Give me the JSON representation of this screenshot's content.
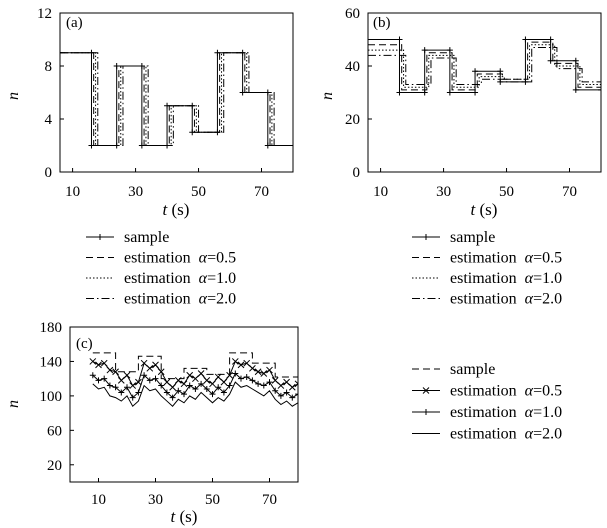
{
  "chart_data": [
    {
      "type": "line",
      "panel_label": "(a)",
      "xlabel_var": "t",
      "xlabel_unit": " (s)",
      "ylabel": "n",
      "xlim": [
        6,
        80
      ],
      "ylim": [
        0,
        12
      ],
      "xticks": [
        10,
        30,
        50,
        70
      ],
      "yticks": [
        0,
        4,
        8,
        12
      ],
      "grid": false,
      "legend_placement": "below",
      "legend": [
        {
          "style": "plus-solid",
          "label": "sample"
        },
        {
          "style": "dashed",
          "label": "estimation",
          "alpha": "=0.5"
        },
        {
          "style": "dotted",
          "label": "estimation",
          "alpha": "=1.0"
        },
        {
          "style": "dashdot",
          "label": "estimation",
          "alpha": "=2.0"
        }
      ],
      "series": [
        {
          "style": "plus-solid",
          "x": [
            6,
            16,
            16,
            24,
            24,
            32,
            32,
            40,
            40,
            48,
            48,
            56,
            56,
            64,
            64,
            72,
            72,
            80
          ],
          "y": [
            9,
            9,
            2,
            2,
            8,
            8,
            2,
            2,
            5,
            5,
            3,
            3,
            9,
            9,
            6,
            6,
            2,
            2
          ]
        },
        {
          "style": "dashed",
          "x": [
            6,
            16.7,
            16.7,
            24.7,
            24.7,
            32.7,
            32.7,
            40.7,
            40.7,
            48.7,
            48.7,
            56.7,
            56.7,
            64.7,
            64.7,
            72.7,
            72.7,
            80
          ],
          "y": [
            9,
            9,
            2,
            2,
            8,
            8,
            2,
            2,
            5,
            5,
            3,
            3,
            9,
            9,
            6,
            6,
            2,
            2
          ]
        },
        {
          "style": "dotted",
          "x": [
            6,
            17.3,
            17.3,
            25.3,
            25.3,
            33.3,
            33.3,
            41.3,
            41.3,
            49.3,
            49.3,
            57.3,
            57.3,
            65.3,
            65.3,
            73.3,
            73.3,
            80
          ],
          "y": [
            9,
            9,
            2,
            2,
            8,
            8,
            2,
            2,
            5,
            5,
            3,
            3,
            9,
            9,
            6,
            6,
            2,
            2
          ]
        },
        {
          "style": "dashdot",
          "x": [
            6,
            18,
            18,
            26,
            26,
            34,
            34,
            42,
            42,
            50,
            50,
            58,
            58,
            66,
            66,
            74,
            74,
            80
          ],
          "y": [
            9,
            9,
            2,
            2,
            8,
            8,
            2,
            2,
            5,
            5,
            3,
            3,
            9,
            9,
            6,
            6,
            2,
            2
          ]
        }
      ]
    },
    {
      "type": "line",
      "panel_label": "(b)",
      "xlabel_var": "t",
      "xlabel_unit": " (s)",
      "ylabel": "n",
      "xlim": [
        6,
        80
      ],
      "ylim": [
        0,
        60
      ],
      "xticks": [
        10,
        30,
        50,
        70
      ],
      "yticks": [
        0,
        20,
        40,
        60
      ],
      "grid": false,
      "legend_placement": "below",
      "legend": [
        {
          "style": "plus-solid",
          "label": "sample"
        },
        {
          "style": "dashed",
          "label": "estimation",
          "alpha": "=0.5"
        },
        {
          "style": "dotted",
          "label": "estimation",
          "alpha": "=1.0"
        },
        {
          "style": "dashdot",
          "label": "estimation",
          "alpha": "=2.0"
        }
      ],
      "series": [
        {
          "style": "plus-solid",
          "x": [
            6,
            16,
            16,
            24,
            24,
            32,
            32,
            40,
            40,
            48,
            48,
            56,
            56,
            64,
            64,
            72,
            72,
            80
          ],
          "y": [
            50,
            50,
            30,
            30,
            46,
            46,
            30,
            30,
            38,
            38,
            34,
            34,
            50,
            50,
            42,
            42,
            31,
            31
          ]
        },
        {
          "style": "dashed",
          "x": [
            6,
            16.7,
            16.7,
            24.7,
            24.7,
            32.7,
            32.7,
            40.7,
            40.7,
            48.7,
            48.7,
            56.7,
            56.7,
            64.7,
            64.7,
            72.7,
            72.7,
            80
          ],
          "y": [
            48,
            48,
            31,
            31,
            45,
            45,
            31,
            31,
            37,
            37,
            35,
            35,
            49,
            49,
            41,
            41,
            32,
            32
          ]
        },
        {
          "style": "dotted",
          "x": [
            6,
            17.3,
            17.3,
            25.3,
            25.3,
            33.3,
            33.3,
            41.3,
            41.3,
            49.3,
            49.3,
            57.3,
            57.3,
            65.3,
            65.3,
            73.3,
            73.3,
            80
          ],
          "y": [
            46,
            46,
            32,
            32,
            44,
            44,
            32,
            32,
            36,
            36,
            35,
            35,
            48,
            48,
            40,
            40,
            33,
            33
          ]
        },
        {
          "style": "dashdot",
          "x": [
            6,
            18,
            18,
            26,
            26,
            34,
            34,
            42,
            42,
            50,
            50,
            58,
            58,
            66,
            66,
            74,
            74,
            80
          ],
          "y": [
            44,
            44,
            33,
            33,
            43,
            43,
            33,
            33,
            35,
            35,
            34,
            34,
            47,
            47,
            39,
            39,
            34,
            34
          ]
        }
      ]
    },
    {
      "type": "line",
      "panel_label": "(c)",
      "xlabel_var": "t",
      "xlabel_unit": " (s)",
      "ylabel": "n",
      "xlim": [
        0,
        80
      ],
      "ylim": [
        0,
        180
      ],
      "xticks": [
        10,
        30,
        50,
        70
      ],
      "yticks": [
        20,
        60,
        100,
        140,
        180
      ],
      "grid": false,
      "legend_placement": "right",
      "legend": [
        {
          "style": "dashed",
          "label": "sample"
        },
        {
          "style": "x-solid",
          "label": "estimation",
          "alpha": "=0.5"
        },
        {
          "style": "plus-solid",
          "label": "estimation",
          "alpha": "=1.0"
        },
        {
          "style": "solid",
          "label": "estimation",
          "alpha": "=2.0"
        }
      ],
      "series": [
        {
          "style": "dashed",
          "x": [
            8,
            16,
            16,
            24,
            24,
            32,
            32,
            40,
            40,
            48,
            48,
            56,
            56,
            64,
            64,
            72,
            72,
            80
          ],
          "y": [
            150,
            150,
            128,
            128,
            146,
            146,
            120,
            120,
            132,
            132,
            125,
            125,
            150,
            150,
            138,
            138,
            122,
            122
          ]
        },
        {
          "style": "x-solid",
          "x": [
            8,
            10,
            12,
            14,
            16,
            18,
            20,
            22,
            24,
            26,
            28,
            30,
            32,
            34,
            36,
            38,
            40,
            42,
            44,
            46,
            48,
            50,
            52,
            54,
            56,
            58,
            60,
            62,
            64,
            66,
            68,
            70,
            72,
            74,
            76,
            78,
            80
          ],
          "y": [
            140,
            136,
            138,
            130,
            128,
            118,
            124,
            112,
            116,
            138,
            132,
            136,
            128,
            116,
            110,
            118,
            114,
            124,
            120,
            126,
            118,
            114,
            122,
            116,
            124,
            140,
            136,
            138,
            132,
            128,
            126,
            130,
            118,
            112,
            116,
            110,
            114
          ]
        },
        {
          "style": "plus-solid",
          "x": [
            8,
            10,
            12,
            14,
            16,
            18,
            20,
            22,
            24,
            26,
            28,
            30,
            32,
            34,
            36,
            38,
            40,
            42,
            44,
            46,
            48,
            50,
            52,
            54,
            56,
            58,
            60,
            62,
            64,
            66,
            68,
            70,
            72,
            74,
            76,
            78,
            80
          ],
          "y": [
            124,
            118,
            120,
            112,
            110,
            104,
            110,
            98,
            104,
            124,
            118,
            120,
            112,
            104,
            98,
            106,
            102,
            112,
            108,
            114,
            108,
            102,
            110,
            104,
            112,
            126,
            120,
            122,
            118,
            114,
            112,
            116,
            106,
            100,
            104,
            98,
            102
          ]
        },
        {
          "style": "solid",
          "x": [
            8,
            10,
            12,
            14,
            16,
            18,
            20,
            22,
            24,
            26,
            28,
            30,
            32,
            34,
            36,
            38,
            40,
            42,
            44,
            46,
            48,
            50,
            52,
            54,
            56,
            58,
            60,
            62,
            64,
            66,
            68,
            70,
            72,
            74,
            76,
            78,
            80
          ],
          "y": [
            114,
            108,
            110,
            100,
            98,
            94,
            100,
            88,
            94,
            112,
            106,
            108,
            100,
            94,
            88,
            96,
            92,
            100,
            96,
            104,
            98,
            92,
            98,
            94,
            102,
            116,
            110,
            112,
            108,
            104,
            100,
            106,
            96,
            90,
            94,
            88,
            92
          ]
        }
      ]
    }
  ]
}
